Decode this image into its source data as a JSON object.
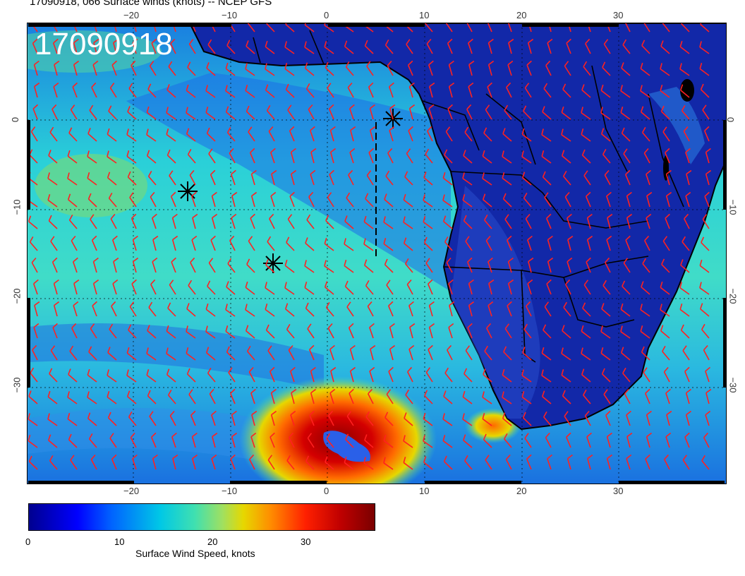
{
  "title": "17090918, 066 Surface winds (knots) -- NCEP GFS",
  "stamp": "17090918",
  "ticks": {
    "lon_top": [
      "−20",
      "−10",
      "0",
      "10",
      "20",
      "30"
    ],
    "lon_bottom": [
      "−20",
      "−10",
      "0",
      "10",
      "20",
      "30"
    ],
    "lat_left": [
      "0",
      "−10",
      "−20",
      "−30"
    ],
    "lat_right": [
      "0",
      "−10",
      "−20",
      "−30"
    ]
  },
  "colorbar": {
    "ticks": [
      "0",
      "10",
      "20",
      "30"
    ],
    "label": "Surface Wind Speed, knots"
  },
  "colors": {
    "barb": "#ff2020",
    "coast": "#000000"
  }
}
